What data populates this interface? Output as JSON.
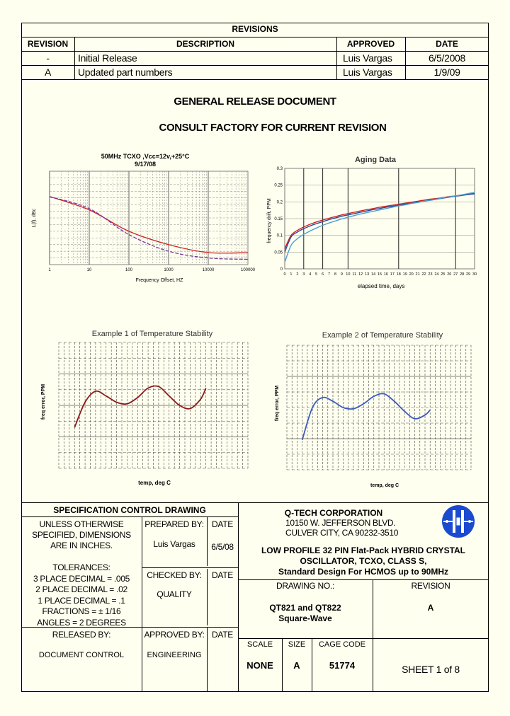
{
  "revisions": {
    "title": "REVISIONS",
    "headers": [
      "REVISION",
      "DESCRIPTION",
      "APPROVED",
      "DATE"
    ],
    "rows": [
      {
        "rev": "-",
        "desc": "Initial Release",
        "approved": "Luis Vargas",
        "date": "6/5/2008"
      },
      {
        "rev": "A",
        "desc": "Updated part numbers",
        "approved": "Luis Vargas",
        "date": "1/9/09"
      }
    ]
  },
  "notice": {
    "line1": "GENERAL RELEASE DOCUMENT",
    "line2": "CONSULT FACTORY FOR CURRENT REVISION"
  },
  "charts": {
    "phase_noise": {
      "title": "50MHz TCXO ,Vcc=12v,+25°C",
      "subtitle": "9/17/08",
      "xlabel": "Frequency Offset, HZ",
      "ylabel": "L(f), dBc"
    },
    "aging": {
      "title": "Aging Data",
      "xlabel": "elapsed time, days",
      "ylabel": "frequency drift, PPM"
    },
    "temp1": {
      "title": "Example 1 of Temperature Stability",
      "xlabel": "temp, deg C",
      "ylabel": "freq error, PPM"
    },
    "temp2": {
      "title": "Example 2 of Temperature Stability",
      "xlabel": "temp, deg C",
      "ylabel": "freq error, PPM"
    }
  },
  "chart_data": [
    {
      "type": "line",
      "title": "50MHz TCXO ,Vcc=12v,+25°C",
      "subtitle": "9/17/08",
      "xlabel": "Frequency Offset, HZ",
      "ylabel": "L(f), dBc",
      "x_scale": "log",
      "x_ticks": [
        "1",
        "10",
        "100",
        "1000",
        "10000",
        "100000"
      ],
      "series": [
        {
          "color": "#cc2222",
          "x": [
            1,
            10,
            100,
            1000,
            10000,
            100000
          ],
          "y": [
            -58,
            -78,
            -110,
            -130,
            -142,
            -142
          ]
        },
        {
          "color": "#7a3aa0",
          "x": [
            1,
            10,
            100,
            1000,
            10000,
            100000
          ],
          "y": [
            -58,
            -76,
            -115,
            -140,
            -150,
            -152
          ]
        }
      ]
    },
    {
      "type": "line",
      "title": "Aging Data",
      "xlabel": "elapsed time, days",
      "ylabel": "frequency drift, PPM",
      "ylim": [
        0,
        0.3
      ],
      "y_ticks": [
        "0",
        "0.05",
        "0.1",
        "0.15",
        "0.2",
        "0.25",
        "0.3"
      ],
      "x": [
        0,
        1,
        2,
        3,
        4,
        5,
        6,
        7,
        8,
        9,
        10,
        11,
        12,
        13,
        14,
        15,
        16,
        17,
        18,
        19,
        20,
        21,
        22,
        23,
        24,
        25,
        26,
        27,
        28,
        29,
        30
      ],
      "series": [
        {
          "color": "#cc2222",
          "values": [
            0.06,
            0.1,
            0.115,
            0.125,
            0.133,
            0.14,
            0.146,
            0.151,
            0.156,
            0.161,
            0.165,
            0.169,
            0.173,
            0.177,
            0.18,
            0.184,
            0.187,
            0.19,
            0.193,
            0.196,
            0.199,
            0.202,
            0.205,
            0.208,
            0.21,
            0.213,
            0.216,
            0.218,
            0.221,
            0.223,
            0.225
          ]
        },
        {
          "color": "#2a4aa0",
          "values": [
            0.05,
            0.095,
            0.11,
            0.12,
            0.128,
            0.135,
            0.141,
            0.147,
            0.152,
            0.157,
            0.161,
            0.165,
            0.169,
            0.173,
            0.177,
            0.18,
            0.184,
            0.187,
            0.19,
            0.193,
            0.196,
            0.199,
            0.202,
            0.205,
            0.208,
            0.211,
            0.214,
            0.217,
            0.219,
            0.222,
            0.224
          ]
        },
        {
          "color": "#4aa0d0",
          "values": [
            0.02,
            0.07,
            0.09,
            0.103,
            0.113,
            0.122,
            0.13,
            0.137,
            0.143,
            0.149,
            0.154,
            0.159,
            0.164,
            0.168,
            0.172,
            0.176,
            0.18,
            0.184,
            0.188,
            0.191,
            0.195,
            0.198,
            0.202,
            0.205,
            0.208,
            0.212,
            0.215,
            0.218,
            0.221,
            0.225,
            0.228
          ]
        }
      ]
    },
    {
      "type": "line",
      "title": "Example 1 of Temperature Stability",
      "xlabel": "temp, deg C",
      "ylabel": "freq error, PPM",
      "ylim": [
        -2,
        2
      ],
      "x": [
        -40,
        -30,
        -20,
        -10,
        0,
        10,
        20,
        30,
        40,
        50,
        60,
        70,
        80,
        85
      ],
      "series": [
        {
          "color": "#8a1a1a",
          "values": [
            -0.7,
            0.1,
            0.45,
            0.3,
            0.1,
            0.05,
            0.25,
            0.55,
            0.6,
            0.3,
            0.0,
            -0.1,
            0.2,
            0.55
          ]
        }
      ]
    },
    {
      "type": "line",
      "title": "Example 2 of Temperature Stability",
      "xlabel": "temp, deg C",
      "ylabel": "freq error, PPM",
      "ylim": [
        -2.5,
        2.5
      ],
      "x": [
        -40,
        -30,
        -20,
        -10,
        0,
        10,
        20,
        30,
        40,
        50,
        60,
        70,
        80,
        85
      ],
      "series": [
        {
          "color": "#3a5ac0",
          "values": [
            -1.3,
            0.0,
            0.4,
            0.25,
            0.0,
            -0.05,
            0.15,
            0.45,
            0.55,
            0.25,
            -0.15,
            -0.45,
            -0.3,
            -0.1
          ]
        }
      ]
    }
  ],
  "title_block": {
    "spec_title": "SPECIFICATION CONTROL DRAWING",
    "unless": [
      "UNLESS OTHERWISE",
      "SPECIFIED, DIMENSIONS",
      "ARE IN INCHES."
    ],
    "tolerances_title": "TOLERANCES:",
    "tolerances": [
      "3 PLACE DECIMAL = .005",
      "2 PLACE DECIMAL = .02",
      "1 PLACE DECIMAL = .1",
      "FRACTIONS = ± 1/16",
      "ANGLES = 2 DEGREES"
    ],
    "prepared_by_label": "PREPARED BY:",
    "prepared_by": "Luis Vargas",
    "date_label": "DATE",
    "prepared_date": "6/5/08",
    "checked_by_label": "CHECKED BY:",
    "checked_by": "QUALITY",
    "released_by_label": "RELEASED BY:",
    "released_by": "DOCUMENT CONTROL",
    "approved_by_label": "APPROVED BY:",
    "approved_by": "ENGINEERING",
    "company": "Q-TECH CORPORATION",
    "address1": "10150 W. JEFFERSON BLVD.",
    "address2": "CULVER CITY, CA 90232-3510",
    "product_lines": [
      "LOW PROFILE 32 PIN Flat-Pack HYBRID CRYSTAL",
      "OSCILLATOR, TCXO, CLASS S,",
      "Standard Design For HCMOS up to 90MHz"
    ],
    "drawing_no_label": "DRAWING NO.:",
    "drawing_no": [
      "QT821 and QT822",
      "Square-Wave"
    ],
    "revision_label": "REVISION",
    "revision": "A",
    "scale_label": "SCALE",
    "scale": "NONE",
    "size_label": "SIZE",
    "size": "A",
    "cage_label": "CAGE CODE",
    "cage": "51774",
    "sheet": "SHEET 1 of 8"
  },
  "colors": {
    "page": "#fffff0",
    "background": "#d8d8c4",
    "logo_blue": "#1a4ad0"
  }
}
